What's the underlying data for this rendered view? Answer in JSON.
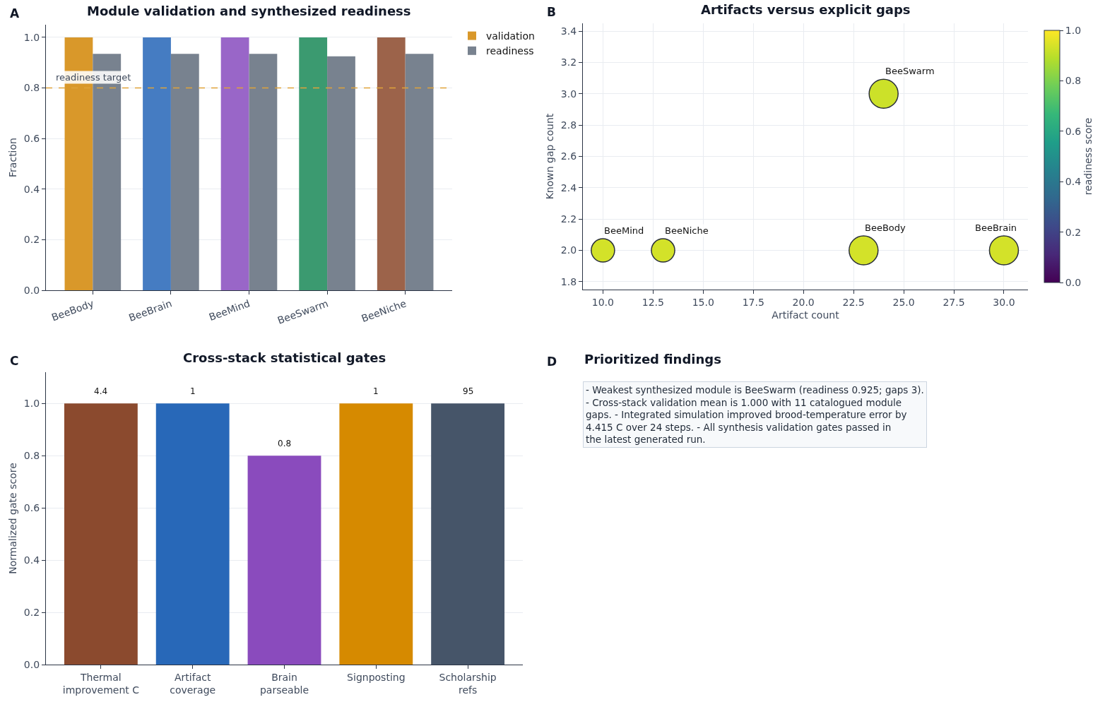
{
  "chart_data": [
    {
      "type": "bar",
      "title": "Module validation and synthesized readiness",
      "ylabel": "Fraction",
      "categories": [
        "BeeBody",
        "BeeBrain",
        "BeeMind",
        "BeeSwarm",
        "BeeNiche"
      ],
      "series": [
        {
          "name": "validation",
          "colors": [
            "#d9982a",
            "#457cc2",
            "#9966c8",
            "#3b9a70",
            "#9c634a"
          ],
          "values": [
            1,
            1,
            1,
            1,
            1
          ]
        },
        {
          "name": "readiness",
          "color": "#78828f",
          "values": [
            0.935,
            0.935,
            0.935,
            0.925,
            0.935
          ]
        }
      ],
      "ylim": [
        0,
        1.05
      ],
      "yticks": [
        {
          "value": 0,
          "label": "0.0"
        },
        0.2,
        0.4,
        0.6,
        0.8,
        {
          "value": 1,
          "label": "1.0"
        }
      ],
      "ref_lines": [
        {
          "axis": "y",
          "value": 0.8,
          "label": "readiness target",
          "color": "#e0a33a",
          "line_style": "dashed"
        }
      ],
      "grid": "y",
      "legend": "top right",
      "annotations": [
        "A"
      ]
    },
    {
      "type": "bubble",
      "title": "Artifacts versus explicit gaps",
      "xlabel": "Artifact count",
      "ylabel": "Known gap count",
      "clabel": "readiness score",
      "x": [
        10,
        13,
        23,
        24,
        30
      ],
      "values": [
        2,
        2,
        2,
        3,
        2
      ],
      "sizes": [
        0.65,
        0.65,
        1,
        1,
        1
      ],
      "cvalues": [
        0.935,
        0.935,
        0.935,
        0.925,
        0.935
      ],
      "clim": [
        0,
        1
      ],
      "cticks": [
        {
          "value": 0,
          "label": "0.0"
        },
        0.2,
        0.4,
        0.6,
        0.8,
        {
          "value": 1,
          "label": "1.0"
        }
      ],
      "xlim": [
        9.0,
        31.2
      ],
      "xticks": [
        {
          "value": 10,
          "label": "10.0"
        },
        12.5,
        {
          "value": 15,
          "label": "15.0"
        },
        17.5,
        {
          "value": 20,
          "label": "20.0"
        },
        22.5,
        {
          "value": 25,
          "label": "25.0"
        },
        27.5,
        {
          "value": 30,
          "label": "30.0"
        }
      ],
      "ylim": [
        1.75,
        3.45
      ],
      "yticks": [
        1.8,
        {
          "value": 2,
          "label": "2.0"
        },
        2.2,
        2.4,
        2.6,
        2.8,
        {
          "value": 3,
          "label": "3.0"
        },
        3.2,
        3.4
      ],
      "grid": true,
      "annotations": [
        "B",
        {
          "text": "BeeMind",
          "x": 10,
          "y": 2
        },
        {
          "text": "BeeNiche",
          "x": 13,
          "y": 2
        },
        {
          "text": "BeeBody",
          "x": 23,
          "y": 2
        },
        {
          "text": "BeeSwarm",
          "x": 24,
          "y": 3
        },
        {
          "text": "BeeBrain",
          "x": 30,
          "y": 2
        }
      ]
    },
    {
      "type": "bar",
      "title": "Cross-stack statistical gates",
      "ylabel": "Normalized gate score",
      "categories": [
        "Thermal improvement C",
        "Artifact coverage",
        "Brain parseable",
        "Signposting",
        "Scholarship refs"
      ],
      "values": [
        1,
        1,
        0.8,
        1,
        1
      ],
      "colors": [
        "#8b4a2e",
        "#2868b8",
        "#8a4bbd",
        "#d68a00",
        "#465569"
      ],
      "ylim": [
        0,
        1.12
      ],
      "yticks": [
        {
          "value": 0,
          "label": "0.0"
        },
        0.2,
        0.4,
        0.6,
        0.8,
        {
          "value": 1,
          "label": "1.0"
        }
      ],
      "grid": "y",
      "annotations": [
        "C",
        {
          "text": "4.4",
          "x": "Thermal improvement C",
          "y": 1
        },
        {
          "text": "1",
          "x": "Artifact coverage",
          "y": 1
        },
        {
          "text": "0.8",
          "x": "Brain parseable",
          "y": 0.8
        },
        {
          "text": "1",
          "x": "Signposting",
          "y": 1
        },
        {
          "text": "95",
          "x": "Scholarship refs",
          "y": 1
        }
      ]
    },
    {
      "type": "other",
      "title": "Prioritized findings",
      "annotations": [
        "D",
        "- Weakest synthesized module is BeeSwarm (readiness 0.925; gaps 3). - Cross-stack validation mean is 1.000 with 11 catalogued module gaps. - Integrated simulation improved brood-temperature error by 4.415 C over 24 steps. - All synthesis validation gates passed in the latest generated run."
      ]
    }
  ]
}
